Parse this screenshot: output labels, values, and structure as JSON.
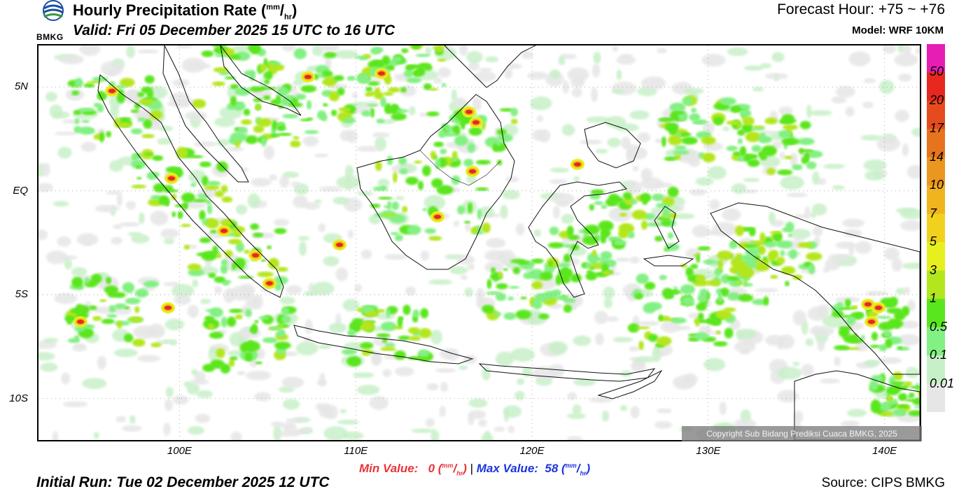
{
  "header": {
    "title": "Hourly Precipitation Rate",
    "title_unit_top": "mm",
    "title_unit_bottom": "hr",
    "valid": "Valid: Fri 05 December 2025 15 UTC to 16 UTC",
    "forecast_hour": "Forecast Hour: +75 ~ +76",
    "model": "Model: WRF 10KM"
  },
  "logo": {
    "text": "BMKG",
    "icon": "bmkg-logo-icon"
  },
  "map": {
    "lat_labels": [
      "5N",
      "EQ",
      "5S",
      "10S"
    ],
    "lon_labels": [
      "100E",
      "110E",
      "120E",
      "130E",
      "140E"
    ],
    "lat_values": [
      5,
      0,
      -5,
      -10
    ],
    "lon_values": [
      100,
      110,
      120,
      130,
      140
    ],
    "lon_range": [
      92,
      142
    ],
    "lat_range": [
      -12,
      7
    ]
  },
  "colorbar": {
    "labels": [
      "50",
      "20",
      "17",
      "14",
      "10",
      "7",
      "5",
      "3",
      "1",
      "0.5",
      "0.1",
      "0.01"
    ],
    "colors": [
      "#e61eb4",
      "#e6281e",
      "#e64b1e",
      "#e6731e",
      "#eb961e",
      "#f0b41e",
      "#f0d21e",
      "#e6f01e",
      "#b4e61e",
      "#5ae61e",
      "#82f082",
      "#c8f0c8",
      "#e6e6e6"
    ]
  },
  "stats": {
    "min_label": "Min Value:",
    "min_value": "0",
    "max_label": "Max Value:",
    "max_value": "58",
    "unit_top": "mm",
    "unit_bottom": "hr",
    "separator": "|"
  },
  "footer": {
    "initial_run": "Initial Run: Tue 02 December 2025 12 UTC",
    "source": "Source: CIPS BMKG",
    "copyright": "Copyright Sub Bidang Prediksi Cuaca BMKG, 2025"
  }
}
